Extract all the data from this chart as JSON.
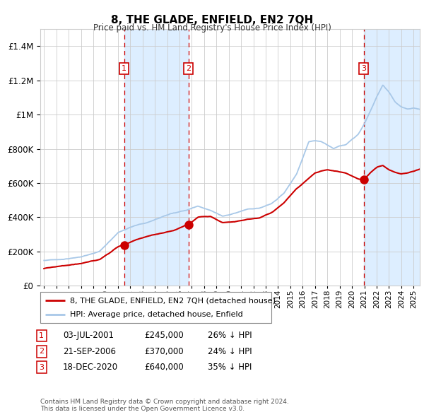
{
  "title": "8, THE GLADE, ENFIELD, EN2 7QH",
  "subtitle": "Price paid vs. HM Land Registry's House Price Index (HPI)",
  "legend_line1": "8, THE GLADE, ENFIELD, EN2 7QH (detached house)",
  "legend_line2": "HPI: Average price, detached house, Enfield",
  "footer": "Contains HM Land Registry data © Crown copyright and database right 2024.\nThis data is licensed under the Open Government Licence v3.0.",
  "transactions": [
    {
      "label": "1",
      "date": "03-JUL-2001",
      "price": 245000,
      "pct": "26% ↓ HPI",
      "x_year": 2001.5
    },
    {
      "label": "2",
      "date": "21-SEP-2006",
      "price": 370000,
      "pct": "24% ↓ HPI",
      "x_year": 2006.72
    },
    {
      "label": "3",
      "date": "18-DEC-2020",
      "price": 640000,
      "pct": "35% ↓ HPI",
      "x_year": 2020.96
    }
  ],
  "hpi_color": "#a8c8e8",
  "price_color": "#cc0000",
  "shading_color": "#ddeeff",
  "dashed_color": "#cc0000",
  "grid_color": "#cccccc",
  "bg_color": "#ffffff",
  "ylim": [
    0,
    1500000
  ],
  "xlim_start": 1994.7,
  "xlim_end": 2025.5,
  "yticks": [
    0,
    200000,
    400000,
    600000,
    800000,
    1000000,
    1200000,
    1400000
  ],
  "ytick_labels": [
    "£0",
    "£200K",
    "£400K",
    "£600K",
    "£800K",
    "£1M",
    "£1.2M",
    "£1.4M"
  ]
}
